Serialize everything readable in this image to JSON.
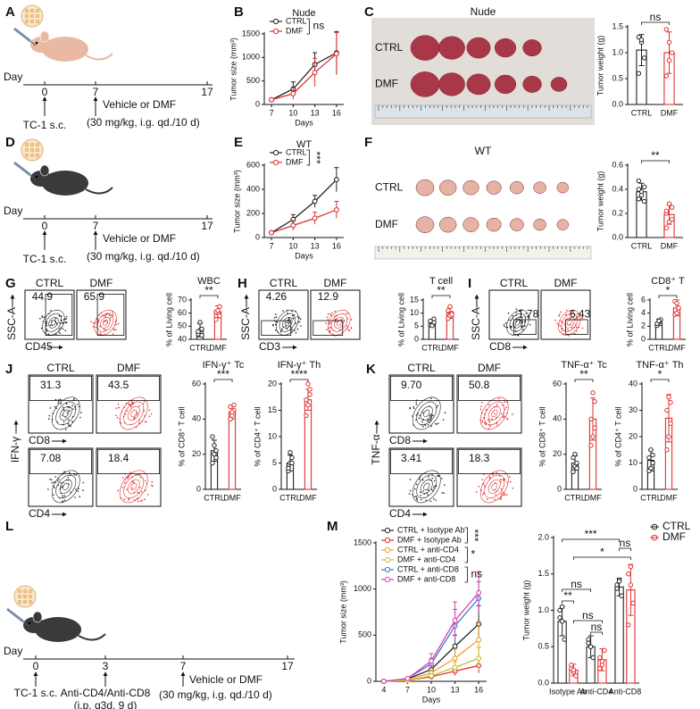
{
  "panel_letters": [
    "A",
    "B",
    "C",
    "D",
    "E",
    "F",
    "G",
    "H",
    "I",
    "J",
    "K",
    "L",
    "M"
  ],
  "timelines": [
    {
      "day": "Day",
      "ticks": [
        "0",
        "7",
        "17"
      ],
      "notes": [
        "TC-1 s.c.",
        "Vehicle or DMF",
        "(30 mg/kg, i.g. qd./10 d)"
      ]
    },
    {
      "day": "Day",
      "ticks": [
        "0",
        "7",
        "17"
      ],
      "notes": [
        "TC-1 s.c.",
        "Vehicle or DMF",
        "(30 mg/kg, i.g. qd./10 d)"
      ]
    },
    {
      "day": "Day",
      "ticks": [
        "0",
        "3",
        "7",
        "17"
      ],
      "notes": [
        "TC-1 s.c.",
        "Anti-CD4/Anti-CD8",
        "(i.p. q3d. 9 d)",
        "Vehicle or DMF",
        "(30 mg/kg, i.g. qd./10 d)"
      ]
    }
  ],
  "photos": [
    {
      "title": "Nude",
      "rows": [
        "CTRL",
        "DMF"
      ]
    },
    {
      "title": "WT",
      "rows": [
        "CTRL",
        "DMF"
      ]
    }
  ],
  "flows": [
    {
      "headers": [
        "CTRL",
        "DMF"
      ],
      "y_label": "SSC-A",
      "x_labels": [
        "CD45"
      ],
      "gates": [
        [
          "44.9",
          "65.9"
        ]
      ]
    },
    {
      "headers": [
        "CTRL",
        "DMF"
      ],
      "y_label": "SSC-A",
      "x_labels": [
        "CD3"
      ],
      "gates": [
        [
          "4.26",
          "12.9"
        ]
      ]
    },
    {
      "headers": [
        "CTRL",
        "DMF"
      ],
      "y_label": "SSC-A",
      "x_labels": [
        "CD8"
      ],
      "gates": [
        [
          "1.78",
          "6.43"
        ]
      ]
    },
    {
      "headers": [
        "CTRL",
        "DMF"
      ],
      "y_label": "IFN-γ",
      "x_labels": [
        "CD8",
        "CD4"
      ],
      "gates": [
        [
          "31.3",
          "43.5"
        ],
        [
          "7.08",
          "18.4"
        ]
      ]
    },
    {
      "headers": [
        "CTRL",
        "DMF"
      ],
      "y_label": "TNF-α",
      "x_labels": [
        "CD8",
        "CD4"
      ],
      "gates": [
        [
          "9.70",
          "50.8"
        ],
        [
          "3.41",
          "18.3"
        ]
      ]
    }
  ],
  "chart_data": [
    {
      "type": "line",
      "title": "Nude",
      "x_label": "Days",
      "y_label": "Tumor size (mm³)",
      "x": [
        7,
        10,
        13,
        16
      ],
      "xlim": [
        6,
        17
      ],
      "xticks": [
        7,
        10,
        13,
        16
      ],
      "ylim": [
        0,
        1500
      ],
      "yticks": [
        0,
        500,
        1000,
        1500
      ],
      "legend": "upper left",
      "series": [
        {
          "name": "CTRL",
          "color": "#222222",
          "values": [
            100,
            330,
            850,
            1100
          ],
          "errors": [
            30,
            150,
            250,
            450
          ]
        },
        {
          "name": "DMF",
          "color": "#e03030",
          "values": [
            100,
            230,
            680,
            1080
          ],
          "errors": [
            30,
            120,
            300,
            450
          ]
        }
      ],
      "significance": [
        "ns"
      ]
    },
    {
      "type": "bar",
      "y_label": "Tumor weight (g)",
      "categories": [
        "CTRL",
        "DMF"
      ],
      "colors": [
        "#222222",
        "#e03030"
      ],
      "values": [
        1.05,
        1.0
      ],
      "errors": [
        0.3,
        0.4
      ],
      "points": [
        [
          1.3,
          1.2,
          0.9,
          0.6,
          1.25
        ],
        [
          1.45,
          1.2,
          1.0,
          0.55,
          0.85
        ]
      ],
      "ylim": [
        0,
        1.5
      ],
      "yticks": [
        {
          "value": 0,
          "label": "0.0"
        },
        {
          "value": 0.5,
          "label": "0.5"
        },
        {
          "value": 1,
          "label": "1.0"
        },
        {
          "value": 1.5,
          "label": "1.5"
        }
      ],
      "significance": [
        "ns"
      ]
    },
    {
      "type": "line",
      "title": "WT",
      "x_label": "Days",
      "y_label": "Tumor size (mm³)",
      "x": [
        7,
        10,
        13,
        16
      ],
      "xlim": [
        6,
        17
      ],
      "xticks": [
        7,
        10,
        13,
        16
      ],
      "ylim": [
        0,
        600
      ],
      "yticks": [
        0,
        200,
        400,
        600
      ],
      "legend": "upper left",
      "series": [
        {
          "name": "CTRL",
          "color": "#222222",
          "values": [
            40,
            150,
            300,
            480
          ],
          "errors": [
            10,
            40,
            50,
            100
          ]
        },
        {
          "name": "DMF",
          "color": "#e03030",
          "values": [
            40,
            100,
            160,
            230
          ],
          "errors": [
            10,
            40,
            50,
            70
          ]
        }
      ],
      "significance": [
        "***"
      ]
    },
    {
      "type": "bar",
      "y_label": "Tumor weight (g)",
      "categories": [
        "CTRL",
        "DMF"
      ],
      "colors": [
        "#222222",
        "#e03030"
      ],
      "values": [
        0.38,
        0.19
      ],
      "errors": [
        0.07,
        0.08
      ],
      "points": [
        [
          0.32,
          0.38,
          0.42,
          0.47,
          0.35,
          0.3,
          0.4
        ],
        [
          0.2,
          0.13,
          0.25,
          0.08,
          0.28,
          0.15,
          0.22
        ]
      ],
      "ylim": [
        0,
        0.6
      ],
      "yticks": [
        {
          "value": 0,
          "label": "0.0"
        },
        {
          "value": 0.2,
          "label": "0.2"
        },
        {
          "value": 0.4,
          "label": "0.4"
        },
        {
          "value": 0.6,
          "label": "0.6"
        }
      ],
      "significance": [
        "**"
      ]
    },
    {
      "type": "bar",
      "title": "WBC",
      "y_label": "% of Living cell",
      "categories": [
        "CTRL",
        "DMF"
      ],
      "colors": [
        "#222222",
        "#e03030"
      ],
      "values": [
        47,
        61
      ],
      "errors": [
        5,
        4.5
      ],
      "points": [
        [
          44,
          47,
          48,
          46,
          53,
          43
        ],
        [
          55,
          60,
          65,
          61,
          62,
          58
        ]
      ],
      "ylim": [
        40,
        70
      ],
      "yticks": [
        40,
        50,
        60,
        70
      ],
      "significance": [
        "**"
      ]
    },
    {
      "type": "bar",
      "title": "T cell",
      "y_label": "% of Living cell",
      "categories": [
        "CTRL",
        "DMF"
      ],
      "colors": [
        "#222222",
        "#e03030"
      ],
      "values": [
        6.3,
        10
      ],
      "errors": [
        1,
        2
      ],
      "points": [
        [
          5.5,
          6,
          6.5,
          7,
          5.2,
          7.8
        ],
        [
          8,
          9,
          10,
          11,
          12.5,
          9.5
        ]
      ],
      "ylim": [
        0,
        15
      ],
      "yticks": [
        0,
        5,
        10,
        15
      ],
      "significance": [
        "**"
      ]
    },
    {
      "type": "bar",
      "title": "CD8⁺ T",
      "y_label": "% of Living cell",
      "categories": [
        "CTRL",
        "DMF"
      ],
      "colors": [
        "#222222",
        "#e03030"
      ],
      "values": [
        2.6,
        4.8
      ],
      "errors": [
        0.5,
        1.2
      ],
      "points": [
        [
          2.1,
          2.6,
          3,
          2.4,
          2.8
        ],
        [
          3.8,
          4,
          4.8,
          5.8,
          5.5
        ]
      ],
      "ylim": [
        0,
        6
      ],
      "yticks": [
        0,
        2,
        4,
        6
      ],
      "significance": [
        "*"
      ]
    },
    {
      "type": "bar",
      "title": "IFN-γ⁺ Tc",
      "y_label": "% of CD8⁺ T cell",
      "categories": [
        "CTRL",
        "DMF"
      ],
      "colors": [
        "#222222",
        "#e03030"
      ],
      "values": [
        22,
        44
      ],
      "errors": [
        6,
        4
      ],
      "points": [
        [
          15,
          20,
          22,
          30,
          25,
          18
        ],
        [
          40,
          42,
          45,
          47,
          44,
          48
        ]
      ],
      "ylim": [
        0,
        60
      ],
      "yticks": [
        0,
        20,
        40,
        60
      ],
      "significance": [
        "***"
      ]
    },
    {
      "type": "bar",
      "title": "IFN-γ⁺ Th",
      "y_label": "% of CD4⁺ T cell",
      "categories": [
        "CTRL",
        "DMF"
      ],
      "colors": [
        "#222222",
        "#e03030"
      ],
      "values": [
        5,
        17
      ],
      "errors": [
        1.5,
        2
      ],
      "points": [
        [
          3.5,
          5,
          6,
          4,
          7,
          5
        ],
        [
          14,
          16,
          18,
          17,
          20,
          19
        ]
      ],
      "ylim": [
        0,
        20
      ],
      "yticks": [
        0,
        5,
        10,
        15,
        20
      ],
      "significance": [
        "****"
      ]
    },
    {
      "type": "bar",
      "title": "TNF-α⁺ Tc",
      "y_label": "% of CD8⁺ T cell",
      "categories": [
        "CTRL",
        "DMF"
      ],
      "colors": [
        "#222222",
        "#e03030"
      ],
      "values": [
        15,
        40
      ],
      "errors": [
        4,
        12
      ],
      "points": [
        [
          10,
          13,
          15,
          18,
          20,
          12
        ],
        [
          25,
          30,
          35,
          40,
          55,
          50
        ]
      ],
      "ylim": [
        0,
        60
      ],
      "yticks": [
        0,
        20,
        40,
        60
      ],
      "significance": [
        "**"
      ]
    },
    {
      "type": "bar",
      "title": "TNF-α⁺ Th",
      "y_label": "% of CD4⁺ T cell",
      "categories": [
        "CTRL",
        "DMF"
      ],
      "colors": [
        "#222222",
        "#e03030"
      ],
      "values": [
        11,
        27
      ],
      "errors": [
        4,
        9
      ],
      "points": [
        [
          7,
          8,
          10,
          12,
          15,
          13
        ],
        [
          15,
          20,
          25,
          30,
          35,
          33
        ]
      ],
      "ylim": [
        0,
        40
      ],
      "yticks": [
        0,
        10,
        20,
        30,
        40
      ],
      "significance": [
        "*"
      ]
    },
    {
      "type": "line",
      "x_label": "Days",
      "y_label": "Tumor size (mm³)",
      "x": [
        4,
        7,
        10,
        13,
        16
      ],
      "xlim": [
        3,
        17
      ],
      "xticks": [
        4,
        7,
        10,
        13,
        16
      ],
      "ylim": [
        0,
        1500
      ],
      "yticks": [
        0,
        500,
        1000,
        1500
      ],
      "legend": "upper left",
      "series": [
        {
          "name": "CTRL + Isotype Ab",
          "color": "#222222",
          "values": [
            0,
            25,
            130,
            380,
            620
          ],
          "errors": [
            0,
            10,
            40,
            120,
            200
          ]
        },
        {
          "name": "DMF + Isotype Ab",
          "color": "#e03030",
          "values": [
            0,
            10,
            50,
            110,
            170
          ],
          "errors": [
            0,
            5,
            20,
            50,
            80
          ]
        },
        {
          "name": "CTRL + anti-CD4",
          "color": "#f0a030",
          "values": [
            0,
            20,
            90,
            250,
            450
          ],
          "errors": [
            0,
            8,
            30,
            100,
            200
          ]
        },
        {
          "name": "DMF + anti-CD4",
          "color": "#c8c030",
          "values": [
            0,
            10,
            60,
            150,
            250
          ],
          "errors": [
            0,
            5,
            25,
            60,
            120
          ]
        },
        {
          "name": "CTRL + anti-CD8",
          "color": "#3a78c8",
          "values": [
            0,
            30,
            190,
            600,
            900
          ],
          "errors": [
            0,
            10,
            60,
            180,
            180
          ]
        },
        {
          "name": "DMF + anti-CD8",
          "color": "#e040b0",
          "values": [
            0,
            30,
            220,
            660,
            960
          ],
          "errors": [
            0,
            10,
            80,
            200,
            230
          ]
        }
      ],
      "significance": [
        "***",
        "*",
        "ns"
      ]
    },
    {
      "type": "bar",
      "y_label": "Tumor weight (g)",
      "categories": [
        "Isotype Ab",
        "Anti-CD4",
        "Anti-CD8"
      ],
      "legend": "right",
      "series": [
        {
          "name": "CTRL",
          "color": "#222222",
          "values": [
            0.85,
            0.5,
            1.32
          ],
          "errors": [
            0.2,
            0.15,
            0.12
          ],
          "points": [
            [
              1.0,
              0.85,
              0.6,
              0.9,
              1.05
            ],
            [
              0.6,
              0.5,
              0.35,
              0.55,
              0.5
            ],
            [
              1.3,
              1.42,
              1.2,
              1.35,
              1.4
            ]
          ]
        },
        {
          "name": "DMF",
          "color": "#e03030",
          "values": [
            0.18,
            0.32,
            1.28
          ],
          "errors": [
            0.08,
            0.15,
            0.35
          ],
          "points": [
            [
              0.2,
              0.15,
              0.1,
              0.25,
              0.18
            ],
            [
              0.35,
              0.25,
              0.45,
              0.2,
              0.3
            ],
            [
              1.5,
              1.6,
              1.1,
              0.8,
              1.35
            ]
          ]
        }
      ],
      "ylim": [
        0,
        2
      ],
      "yticks": [
        {
          "value": 0,
          "label": "0.0"
        },
        {
          "value": 0.5,
          "label": "0.5"
        },
        {
          "value": 1,
          "label": "1.0"
        },
        {
          "value": 1.5,
          "label": "1.5"
        },
        {
          "value": 2,
          "label": "2.0"
        }
      ],
      "significance": [
        "**",
        "ns",
        "ns",
        "ns",
        "*",
        "***",
        "ns"
      ]
    }
  ]
}
